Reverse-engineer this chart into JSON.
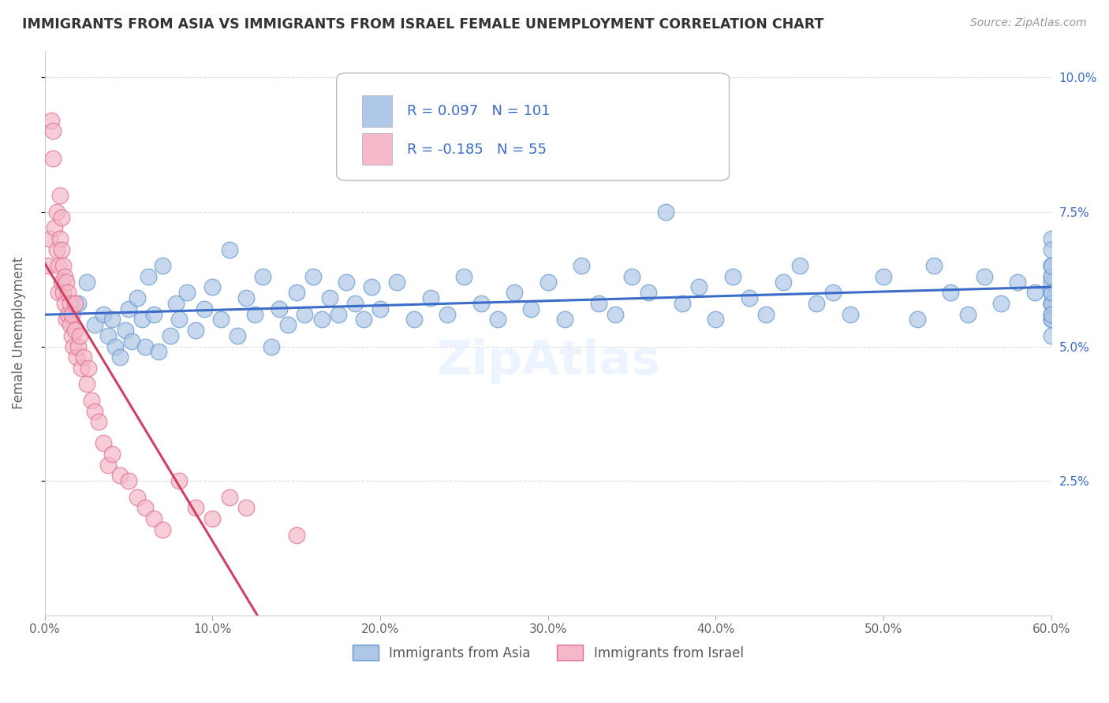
{
  "title": "IMMIGRANTS FROM ASIA VS IMMIGRANTS FROM ISRAEL FEMALE UNEMPLOYMENT CORRELATION CHART",
  "source": "Source: ZipAtlas.com",
  "ylabel": "Female Unemployment",
  "x_min": 0.0,
  "x_max": 0.6,
  "y_min": 0.0,
  "y_max": 0.105,
  "y_ticks": [
    0.025,
    0.05,
    0.075,
    0.1
  ],
  "y_tick_labels": [
    "2.5%",
    "5.0%",
    "7.5%",
    "10.0%"
  ],
  "x_ticks": [
    0.0,
    0.1,
    0.2,
    0.3,
    0.4,
    0.5,
    0.6
  ],
  "x_tick_labels": [
    "0.0%",
    "10.0%",
    "20.0%",
    "30.0%",
    "40.0%",
    "50.0%",
    "60.0%"
  ],
  "asia_color": "#aec6e8",
  "asia_edge": "#6699cc",
  "israel_color": "#f4b8c8",
  "israel_edge": "#e07090",
  "trend_asia_color": "#3a6cc8",
  "trend_israel_color": "#d04060",
  "background_color": "#ffffff",
  "watermark": "ZipAtlas",
  "legend_asia_R": 0.097,
  "legend_asia_N": 101,
  "legend_israel_R": -0.185,
  "legend_israel_N": 55,
  "legend_label_asia": "Immigrants from Asia",
  "legend_label_israel": "Immigrants from Israel",
  "asia_points_x": [
    0.02,
    0.025,
    0.03,
    0.035,
    0.038,
    0.04,
    0.042,
    0.045,
    0.048,
    0.05,
    0.052,
    0.055,
    0.058,
    0.06,
    0.062,
    0.065,
    0.068,
    0.07,
    0.075,
    0.078,
    0.08,
    0.085,
    0.09,
    0.095,
    0.1,
    0.105,
    0.11,
    0.115,
    0.12,
    0.125,
    0.13,
    0.135,
    0.14,
    0.145,
    0.15,
    0.155,
    0.16,
    0.165,
    0.17,
    0.175,
    0.18,
    0.185,
    0.19,
    0.195,
    0.2,
    0.21,
    0.22,
    0.23,
    0.24,
    0.25,
    0.26,
    0.27,
    0.28,
    0.29,
    0.3,
    0.31,
    0.32,
    0.33,
    0.34,
    0.35,
    0.36,
    0.37,
    0.38,
    0.39,
    0.4,
    0.41,
    0.42,
    0.43,
    0.44,
    0.45,
    0.46,
    0.47,
    0.48,
    0.5,
    0.52,
    0.53,
    0.54,
    0.55,
    0.56,
    0.57,
    0.58,
    0.59,
    0.6,
    0.6,
    0.6,
    0.6,
    0.6,
    0.6,
    0.6,
    0.6,
    0.6,
    0.6,
    0.6,
    0.6,
    0.6,
    0.6,
    0.6,
    0.6,
    0.6,
    0.6,
    0.6
  ],
  "asia_points_y": [
    0.058,
    0.062,
    0.054,
    0.056,
    0.052,
    0.055,
    0.05,
    0.048,
    0.053,
    0.057,
    0.051,
    0.059,
    0.055,
    0.05,
    0.063,
    0.056,
    0.049,
    0.065,
    0.052,
    0.058,
    0.055,
    0.06,
    0.053,
    0.057,
    0.061,
    0.055,
    0.068,
    0.052,
    0.059,
    0.056,
    0.063,
    0.05,
    0.057,
    0.054,
    0.06,
    0.056,
    0.063,
    0.055,
    0.059,
    0.056,
    0.062,
    0.058,
    0.055,
    0.061,
    0.057,
    0.062,
    0.055,
    0.059,
    0.056,
    0.063,
    0.058,
    0.055,
    0.06,
    0.057,
    0.062,
    0.055,
    0.065,
    0.058,
    0.056,
    0.063,
    0.06,
    0.075,
    0.058,
    0.061,
    0.055,
    0.063,
    0.059,
    0.056,
    0.062,
    0.065,
    0.058,
    0.06,
    0.056,
    0.063,
    0.055,
    0.065,
    0.06,
    0.056,
    0.063,
    0.058,
    0.062,
    0.06,
    0.055,
    0.058,
    0.063,
    0.056,
    0.06,
    0.065,
    0.058,
    0.052,
    0.07,
    0.06,
    0.055,
    0.065,
    0.058,
    0.062,
    0.056,
    0.06,
    0.063,
    0.068,
    0.065
  ],
  "israel_points_x": [
    0.002,
    0.003,
    0.004,
    0.005,
    0.005,
    0.006,
    0.007,
    0.007,
    0.008,
    0.008,
    0.009,
    0.009,
    0.01,
    0.01,
    0.01,
    0.011,
    0.011,
    0.012,
    0.012,
    0.013,
    0.013,
    0.014,
    0.014,
    0.015,
    0.015,
    0.016,
    0.016,
    0.017,
    0.018,
    0.018,
    0.019,
    0.02,
    0.021,
    0.022,
    0.023,
    0.025,
    0.026,
    0.028,
    0.03,
    0.032,
    0.035,
    0.038,
    0.04,
    0.045,
    0.05,
    0.055,
    0.06,
    0.065,
    0.07,
    0.08,
    0.09,
    0.1,
    0.11,
    0.12,
    0.15
  ],
  "israel_points_y": [
    0.065,
    0.07,
    0.092,
    0.085,
    0.09,
    0.072,
    0.068,
    0.075,
    0.06,
    0.065,
    0.07,
    0.078,
    0.062,
    0.068,
    0.074,
    0.06,
    0.065,
    0.058,
    0.063,
    0.055,
    0.062,
    0.056,
    0.06,
    0.054,
    0.058,
    0.052,
    0.056,
    0.05,
    0.053,
    0.058,
    0.048,
    0.05,
    0.052,
    0.046,
    0.048,
    0.043,
    0.046,
    0.04,
    0.038,
    0.036,
    0.032,
    0.028,
    0.03,
    0.026,
    0.025,
    0.022,
    0.02,
    0.018,
    0.016,
    0.025,
    0.02,
    0.018,
    0.022,
    0.02,
    0.015
  ]
}
